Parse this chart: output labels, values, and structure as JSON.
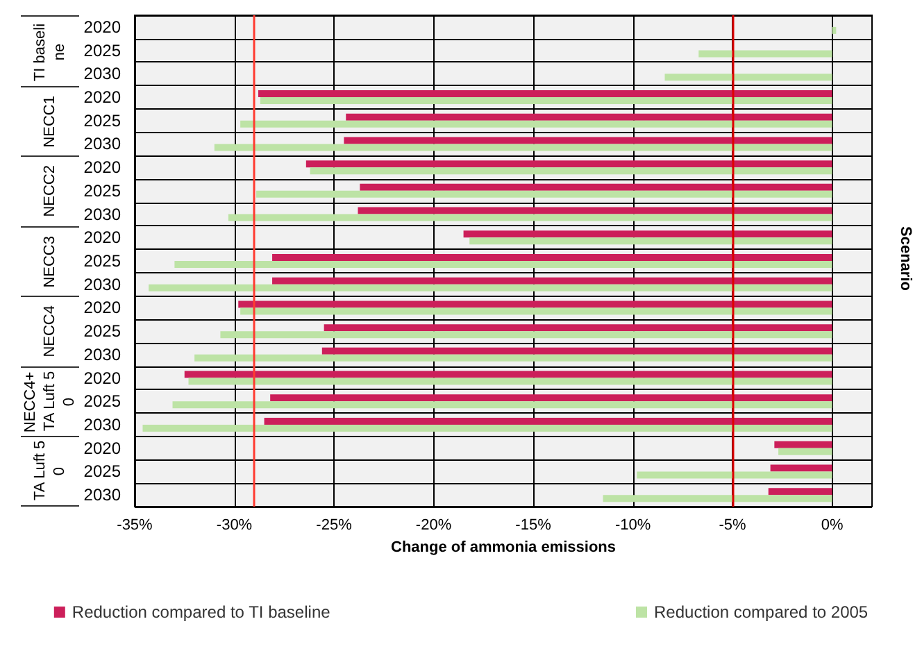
{
  "chart_data": {
    "type": "bar",
    "orientation": "horizontal",
    "xlabel": "Change of ammonia emissions",
    "ylabel": "Scenario",
    "categories": [
      "2020",
      "2025",
      "2030",
      "2020",
      "2025",
      "2030",
      "2020",
      "2025",
      "2030",
      "2020",
      "2025",
      "2030",
      "2020",
      "2025",
      "2030",
      "2020",
      "2025",
      "2030",
      "2020",
      "2025",
      "2030"
    ],
    "annotations": [
      "TI baseline",
      "NECC1",
      "NECC2",
      "NECC3",
      "NECC4",
      "NECC4+TA Luft 50",
      "TA Luft 50"
    ],
    "series": [
      {
        "name": "Reduction compared to TI baseline",
        "color": "#cc1f5a",
        "values": [
          null,
          null,
          null,
          -28.8,
          -24.4,
          -24.5,
          -26.4,
          -23.7,
          -23.8,
          -18.5,
          -28.1,
          -28.1,
          -29.8,
          -25.5,
          -25.6,
          -32.5,
          -28.2,
          -28.5,
          -2.9,
          -3.1,
          -3.2
        ]
      },
      {
        "name": "Reduction compared to 2005",
        "color": "#bde3a5",
        "values": [
          0.2,
          -6.7,
          -8.4,
          -28.7,
          -29.7,
          -31.0,
          -26.2,
          -28.9,
          -30.3,
          -18.2,
          -33.0,
          -34.3,
          -29.7,
          -30.7,
          -32.0,
          -32.3,
          -33.1,
          -34.6,
          -2.7,
          -9.8,
          -11.5
        ]
      }
    ],
    "xlim": [
      -35,
      2
    ],
    "xticks": [
      {
        "value": -35,
        "label": "-35%"
      },
      {
        "value": -30,
        "label": "-30%"
      },
      {
        "value": -25,
        "label": "-25%"
      },
      {
        "value": -20,
        "label": "-20%"
      },
      {
        "value": -15,
        "label": "-15%"
      },
      {
        "value": -10,
        "label": "-10%"
      },
      {
        "value": -5,
        "label": "-5%"
      },
      {
        "value": 0,
        "label": "0%"
      }
    ],
    "ref_lines": [
      {
        "axis": "x",
        "value": -29,
        "color": "#ff3b30"
      },
      {
        "axis": "x",
        "value": -5,
        "color": "#e00000"
      }
    ],
    "grid": true,
    "legend": "bottom"
  }
}
